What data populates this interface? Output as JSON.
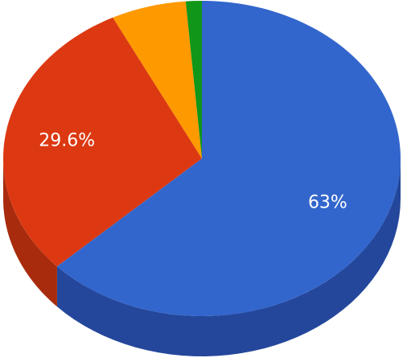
{
  "chart_data": {
    "type": "pie",
    "style": "3d",
    "title": "",
    "legend": "none",
    "slices": [
      {
        "value": 63.0,
        "label": "63%",
        "color": "#3366cc",
        "side_color": "#24479b"
      },
      {
        "value": 29.6,
        "label": "29.6%",
        "color": "#dc3912",
        "side_color": "#a82b0d"
      },
      {
        "value": 6.1,
        "label": "",
        "color": "#ff9900",
        "side_color": "#c27400"
      },
      {
        "value": 1.3,
        "label": "",
        "color": "#109618",
        "side_color": "#0b6b11"
      }
    ]
  }
}
